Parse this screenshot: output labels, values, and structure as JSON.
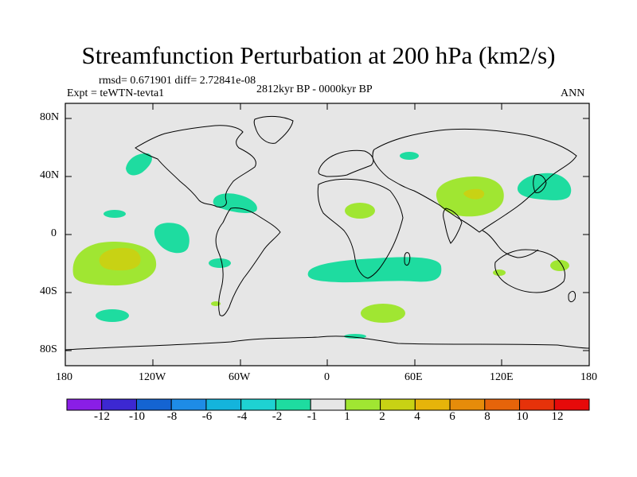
{
  "figure": {
    "title": "Streamfunction Perturbation at 200 hPa (km2/s)",
    "stats": "rmsd= 0.671901 diff= 2.72841e-08",
    "experiment": "Expt = teWTN-tevta1",
    "period": "2812kyr BP - 0000kyr BP",
    "season": "ANN"
  },
  "axes": {
    "lat_ticks": [
      "80N",
      "40N",
      "0",
      "40S",
      "80S"
    ],
    "lon_ticks": [
      "180",
      "120W",
      "60W",
      "0",
      "60E",
      "120E",
      "180"
    ]
  },
  "colorbar": {
    "labels": [
      "-12",
      "-10",
      "-8",
      "-6",
      "-4",
      "-2",
      "-1",
      "1",
      "2",
      "4",
      "6",
      "8",
      "10",
      "12"
    ],
    "colors": [
      "#8a1ee6",
      "#3c28d2",
      "#1464d2",
      "#1e8ce6",
      "#14b4dc",
      "#1ed2d2",
      "#1edca0",
      "#e6e6e6",
      "#a0e632",
      "#c8d214",
      "#e6b40a",
      "#e68c0a",
      "#e6640a",
      "#e6320a",
      "#e60a0a"
    ]
  },
  "colors": {
    "land_bg": "#e6e6e6",
    "level_1_2": "#a0e632",
    "level_2_4": "#c8d214",
    "level_neg": "#1edca0"
  }
}
